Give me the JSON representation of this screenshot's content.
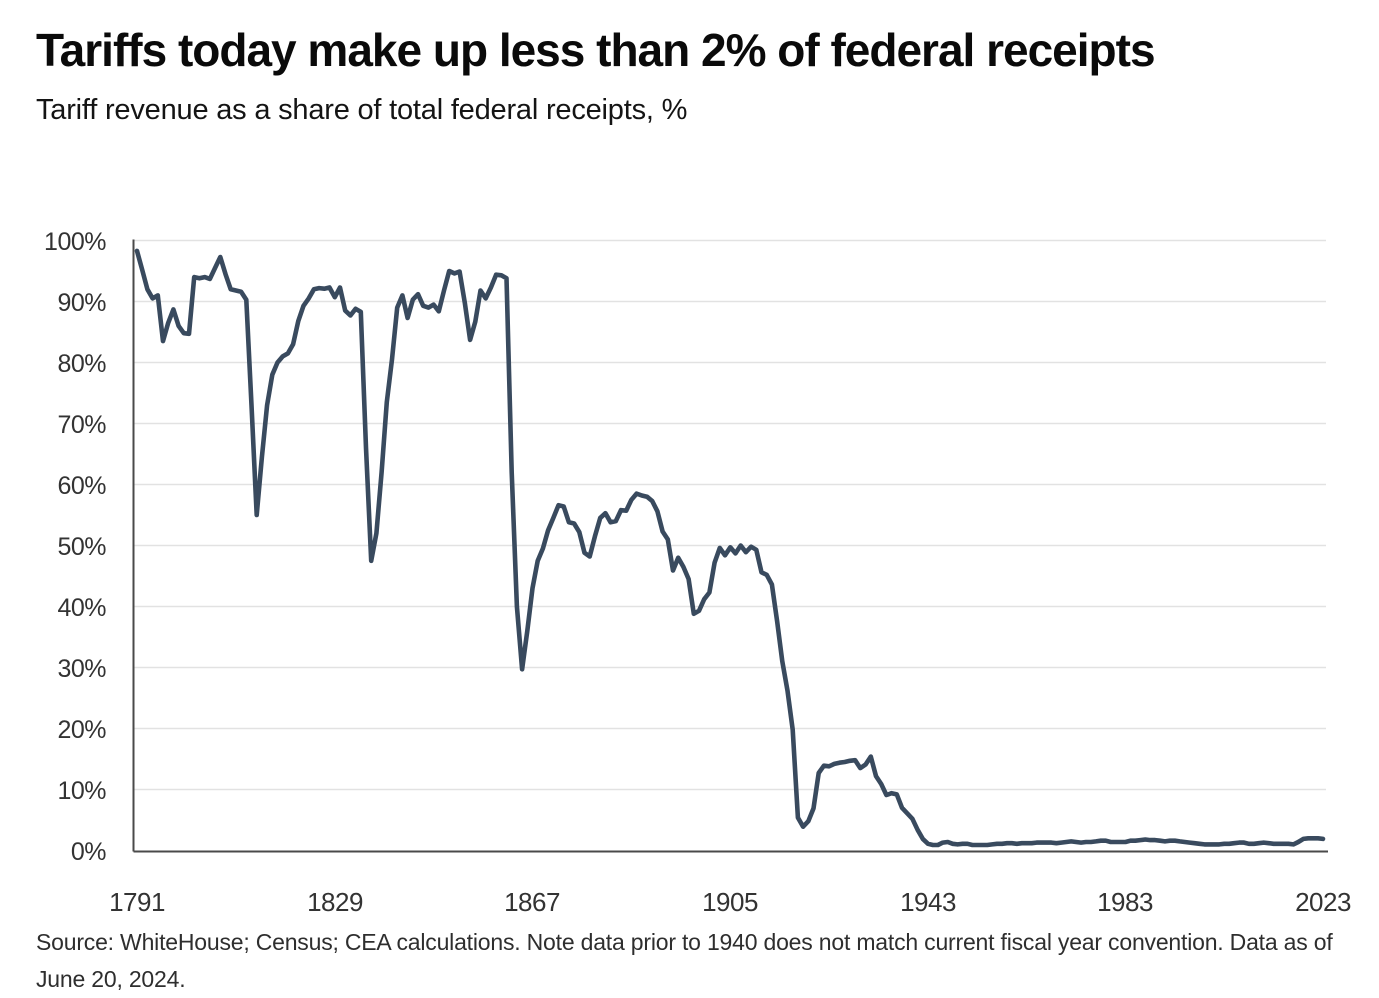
{
  "header": {
    "title": "Tariffs today make up less than 2% of federal receipts",
    "subtitle": "Tariff revenue as a share of total federal receipts, %"
  },
  "source_note": "Source: WhiteHouse; Census; CEA calculations. Note data prior to 1940 does not match current fiscal year convention. Data as of June 20, 2024.",
  "colors": {
    "line": "#394a5e",
    "grid": "#e2e2e2",
    "axis": "#4a4a4a",
    "title_text": "#0a0a0a",
    "tick_text": "#333333",
    "background": "#ffffff"
  },
  "chart_data": {
    "type": "line",
    "title": "Tariffs today make up less than 2% of federal receipts",
    "subtitle": "Tariff revenue as a share of total federal receipts, %",
    "xlabel": "",
    "ylabel": "Tariff revenue as a share of total federal receipts, %",
    "ylim": [
      0,
      100
    ],
    "y_tick_step": 10,
    "grid": "horizontal",
    "legend": "none",
    "x_tick_labels": [
      "1791",
      "1829",
      "1867",
      "1905",
      "1943",
      "1983",
      "2023"
    ],
    "y_tick_labels": [
      "100%",
      "90%",
      "80%",
      "70%",
      "60%",
      "50%",
      "40%",
      "30%",
      "20%",
      "10%",
      "0%"
    ],
    "series": [
      {
        "name": "Tariff revenue as a share of total federal receipts (%)",
        "start_year": 1791,
        "end_year": 2023,
        "frequency": "annual",
        "values": [
          98.3,
          95.2,
          92.0,
          90.5,
          91.0,
          83.5,
          86.5,
          88.7,
          86.0,
          84.8,
          84.7,
          94.0,
          93.8,
          94.0,
          93.7,
          95.5,
          97.3,
          94.5,
          92.0,
          91.8,
          91.6,
          90.3,
          73.0,
          55.0,
          64.5,
          73.0,
          78.0,
          80.0,
          81.0,
          81.5,
          83.0,
          86.8,
          89.3,
          90.5,
          92.0,
          92.2,
          92.1,
          92.3,
          90.7,
          92.3,
          88.5,
          87.7,
          88.8,
          88.3,
          66.0,
          47.5,
          52.0,
          62.0,
          73.5,
          80.5,
          89.0,
          91.0,
          87.3,
          90.3,
          91.2,
          89.3,
          89.0,
          89.5,
          88.4,
          91.8,
          95.0,
          94.6,
          94.9,
          89.8,
          83.7,
          86.7,
          91.8,
          90.5,
          92.3,
          94.4,
          94.3,
          93.8,
          62.0,
          40.0,
          29.7,
          36.0,
          43.0,
          47.5,
          49.5,
          52.5,
          54.5,
          56.6,
          56.4,
          53.8,
          53.6,
          52.2,
          48.8,
          48.2,
          51.5,
          54.5,
          55.3,
          53.8,
          54.0,
          55.8,
          55.7,
          57.5,
          58.5,
          58.2,
          58.0,
          57.3,
          55.6,
          52.3,
          51.0,
          45.9,
          48.0,
          46.5,
          44.5,
          38.8,
          39.3,
          41.2,
          42.3,
          47.2,
          49.6,
          48.4,
          49.7,
          48.7,
          50.0,
          48.9,
          49.8,
          49.3,
          45.6,
          45.2,
          43.6,
          37.6,
          31.0,
          26.2,
          19.8,
          5.4,
          3.9,
          4.8,
          6.9,
          12.7,
          13.9,
          13.8,
          14.2,
          14.4,
          14.5,
          14.7,
          14.8,
          13.5,
          14.1,
          15.4,
          12.2,
          10.9,
          9.1,
          9.4,
          9.2,
          7.0,
          6.1,
          5.2,
          3.4,
          1.9,
          1.1,
          0.9,
          0.9,
          1.3,
          1.4,
          1.1,
          1.0,
          1.1,
          1.1,
          0.9,
          0.9,
          0.9,
          0.9,
          1.0,
          1.1,
          1.1,
          1.2,
          1.2,
          1.1,
          1.2,
          1.2,
          1.2,
          1.3,
          1.3,
          1.3,
          1.3,
          1.2,
          1.3,
          1.4,
          1.5,
          1.4,
          1.3,
          1.4,
          1.4,
          1.5,
          1.6,
          1.6,
          1.4,
          1.4,
          1.4,
          1.4,
          1.6,
          1.6,
          1.7,
          1.8,
          1.7,
          1.7,
          1.6,
          1.5,
          1.6,
          1.6,
          1.5,
          1.4,
          1.3,
          1.2,
          1.1,
          1.0,
          1.0,
          1.0,
          1.0,
          1.1,
          1.1,
          1.2,
          1.3,
          1.3,
          1.1,
          1.1,
          1.2,
          1.3,
          1.2,
          1.1,
          1.1,
          1.1,
          1.1,
          1.0,
          1.4,
          1.9,
          2.0,
          2.0,
          2.0,
          1.9
        ]
      }
    ]
  }
}
